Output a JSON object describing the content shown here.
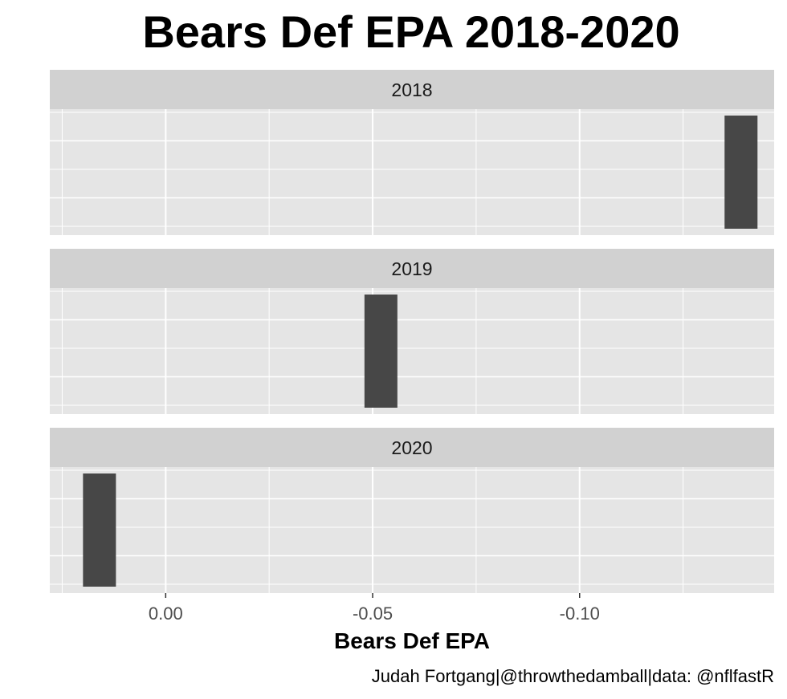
{
  "chart_data": {
    "type": "bar",
    "title": "Bears Def EPA 2018-2020",
    "xlabel": "Bears Def EPA",
    "ylabel": "",
    "caption": "Judah Fortgang|@throwthedamball|data: @nflfastR",
    "x_reversed": true,
    "xlim": [
      0.028,
      -0.147
    ],
    "x_ticks": [
      {
        "value": 0.0,
        "label": "0.00"
      },
      {
        "value": -0.05,
        "label": "-0.05"
      },
      {
        "value": -0.1,
        "label": "-0.10"
      }
    ],
    "grid": true,
    "facets": [
      {
        "label": "2018",
        "value": -0.139
      },
      {
        "label": "2019",
        "value": -0.052
      },
      {
        "label": "2020",
        "value": 0.016
      }
    ]
  },
  "colors": {
    "panel_bg": "#e5e5e5",
    "strip_bg": "#d1d1d1",
    "grid": "#ffffff",
    "bar": "#474747"
  }
}
